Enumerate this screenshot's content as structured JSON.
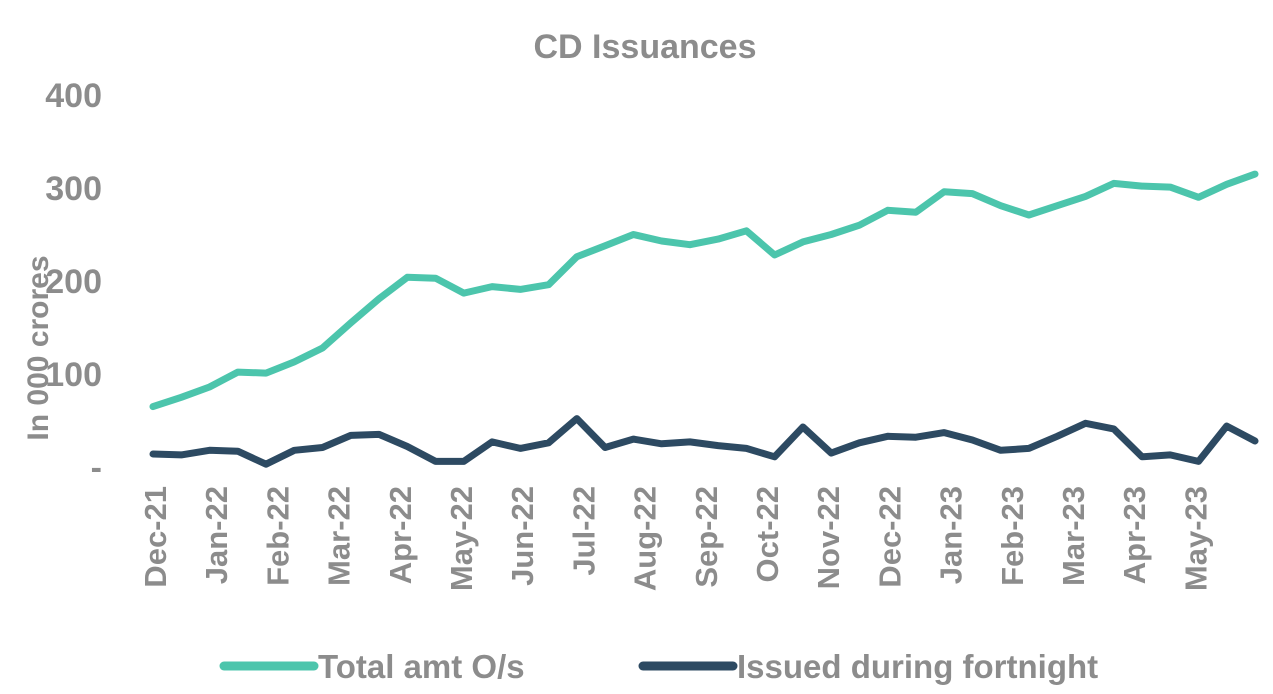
{
  "chart_data": {
    "type": "line",
    "title": "CD Issuances",
    "ylabel": "In 000 crores",
    "xlabel": "",
    "ylim": [
      0,
      400
    ],
    "yticks": [
      0,
      100,
      200,
      300,
      400
    ],
    "ytick_labels": [
      "-",
      "100",
      "200",
      "300",
      "400"
    ],
    "x_tick_labels": [
      "Dec-21",
      "Jan-22",
      "Feb-22",
      "Mar-22",
      "Apr-22",
      "May-22",
      "Jun-22",
      "Jul-22",
      "Aug-22",
      "Sep-22",
      "Oct-22",
      "Nov-22",
      "Dec-22",
      "Jan-23",
      "Feb-23",
      "Mar-23",
      "Apr-23",
      "May-23"
    ],
    "grid": false,
    "legend_position": "bottom",
    "series": [
      {
        "name": "Total amt O/s",
        "color": "#4cc5ac",
        "values": [
          65,
          75,
          86,
          102,
          101,
          113,
          128,
          155,
          181,
          204,
          203,
          187,
          194,
          191,
          196,
          226,
          238,
          250,
          243,
          239,
          245,
          254,
          228,
          242,
          250,
          260,
          276,
          274,
          296,
          294,
          281,
          271,
          281,
          291,
          305,
          302,
          301,
          290,
          304,
          315
        ]
      },
      {
        "name": "Issued during fortnight",
        "color": "#2d4a62",
        "values": [
          14,
          13,
          18,
          17,
          3,
          18,
          21,
          34,
          35,
          22,
          6,
          6,
          27,
          20,
          26,
          52,
          21,
          30,
          25,
          27,
          23,
          20,
          11,
          43,
          15,
          26,
          33,
          32,
          37,
          29,
          18,
          20,
          33,
          47,
          41,
          11,
          13,
          6,
          44,
          28
        ]
      }
    ]
  }
}
